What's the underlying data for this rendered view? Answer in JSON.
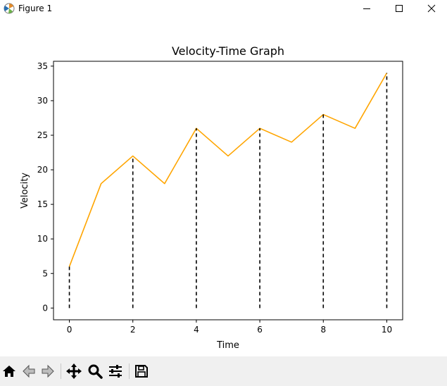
{
  "window": {
    "title": "Figure 1",
    "controls": [
      "minimize",
      "maximize",
      "close"
    ]
  },
  "toolbar": {
    "buttons": [
      "home-icon",
      "back-arrow-icon",
      "forward-arrow-icon",
      "pan-icon",
      "zoom-icon",
      "subplots-config-icon",
      "save-icon"
    ]
  },
  "chart_data": {
    "type": "line",
    "title": "Velocity-Time Graph",
    "xlabel": "Time",
    "ylabel": "Velocity",
    "x": [
      0,
      1,
      2,
      3,
      4,
      5,
      6,
      7,
      8,
      9,
      10
    ],
    "series": [
      {
        "values": [
          6,
          18,
          22,
          18,
          26,
          22,
          26,
          24,
          28,
          26,
          34
        ],
        "color": "#ffa500"
      }
    ],
    "vertical_markers": {
      "x": [
        0,
        2,
        4,
        6,
        8,
        10
      ],
      "style": "dashed",
      "color": "#000000"
    },
    "xlim": [
      -0.5,
      10.5
    ],
    "ylim": [
      -1.7,
      35.7
    ],
    "xticks": [
      "0",
      "2",
      "4",
      "6",
      "8",
      "10"
    ],
    "yticks": [
      "0",
      "5",
      "10",
      "15",
      "20",
      "25",
      "30",
      "35"
    ],
    "grid": false,
    "legend": "none"
  }
}
